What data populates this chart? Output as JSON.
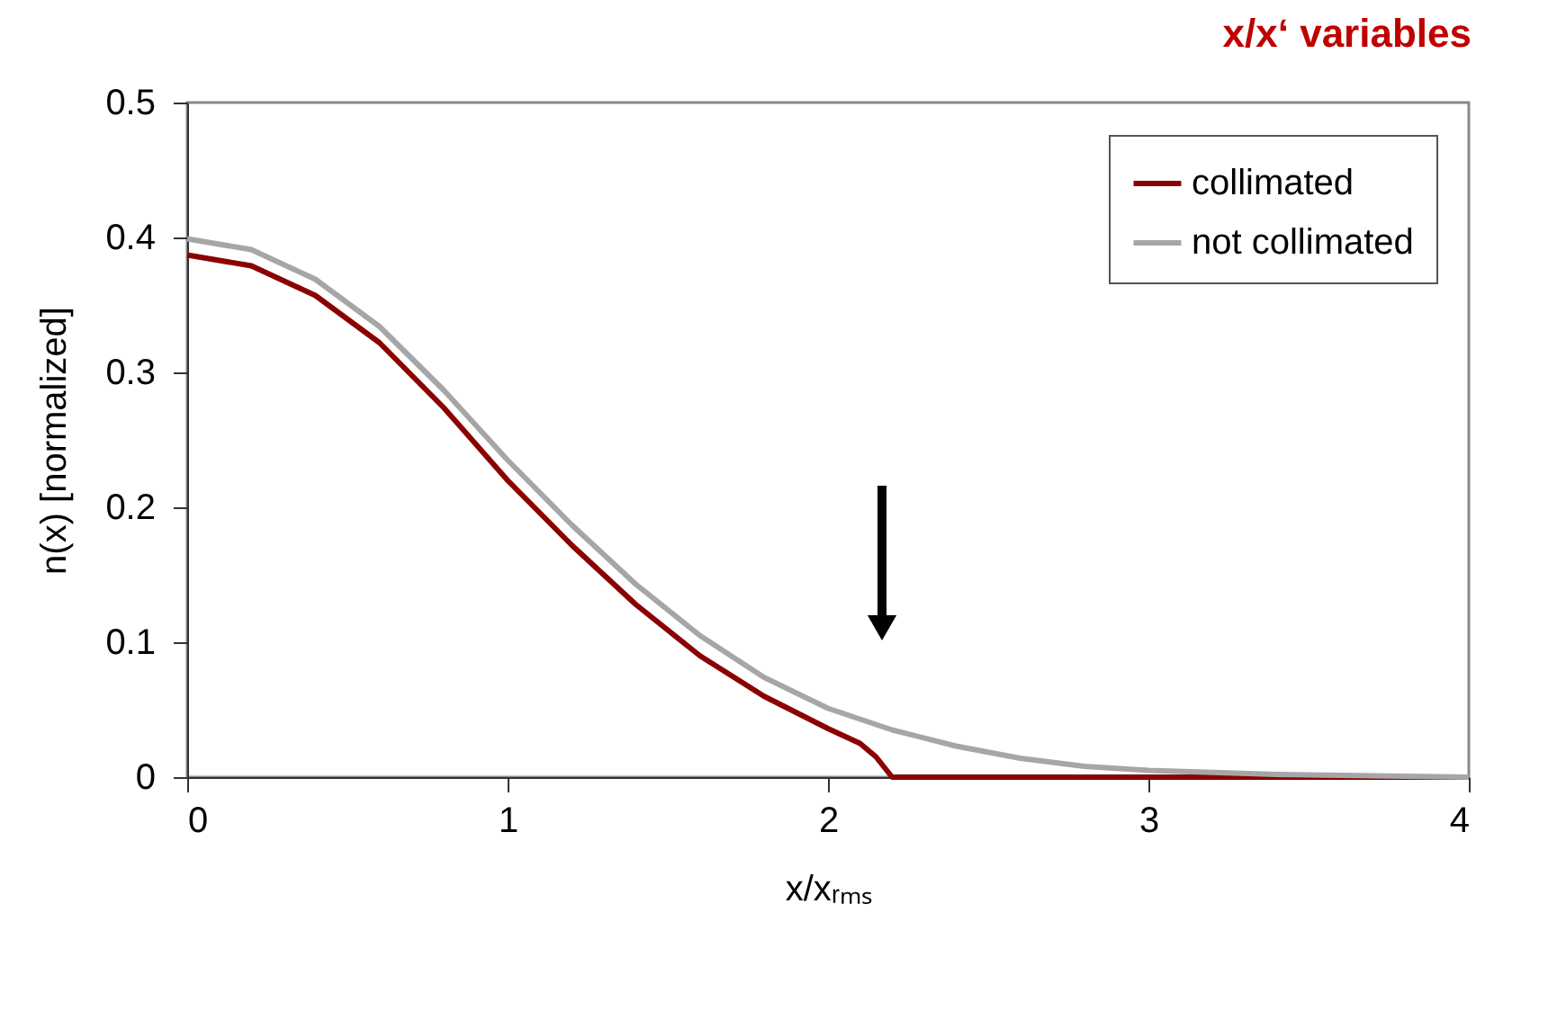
{
  "chart_data": {
    "type": "line",
    "title": "x/x‘ variables",
    "xlabel": "x/xᵣₘₛ",
    "ylabel": "n(x) [normalized]",
    "xlim": [
      0,
      4
    ],
    "xticks": [
      0,
      1,
      2,
      3,
      4
    ],
    "ylim": [
      0,
      0.5
    ],
    "yticks": [
      0,
      0.1,
      0.2,
      0.3,
      0.4,
      0.5
    ],
    "grid": false,
    "legend": "top right",
    "marker": "none",
    "line_style": "solid",
    "series": [
      {
        "name": "collimated",
        "color": "#8b0000",
        "x": [
          0,
          0.2,
          0.4,
          0.6,
          0.8,
          1.0,
          1.2,
          1.4,
          1.6,
          1.8,
          2.0,
          2.1,
          2.15,
          2.19,
          2.2,
          4
        ],
        "values": [
          0.387,
          0.379,
          0.357,
          0.322,
          0.274,
          0.22,
          0.172,
          0.128,
          0.09,
          0.06,
          0.036,
          0.025,
          0.015,
          0.003,
          0,
          0
        ]
      },
      {
        "name": "not collimated",
        "color": "#a6a6a6",
        "x": [
          0,
          0.2,
          0.4,
          0.6,
          0.8,
          1.0,
          1.2,
          1.4,
          1.6,
          1.8,
          2.0,
          2.2,
          2.4,
          2.6,
          2.8,
          3.0,
          3.4,
          4
        ],
        "values": [
          0.399,
          0.391,
          0.369,
          0.334,
          0.287,
          0.235,
          0.187,
          0.143,
          0.105,
          0.074,
          0.051,
          0.035,
          0.023,
          0.014,
          0.008,
          0.005,
          0.002,
          0
        ]
      }
    ]
  }
}
